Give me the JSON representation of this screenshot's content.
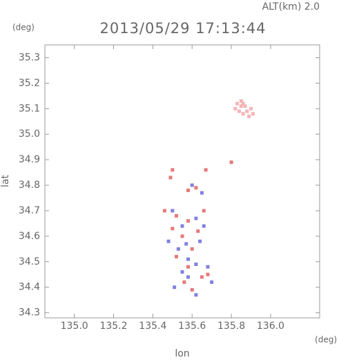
{
  "chart_data": {
    "type": "scatter",
    "header": "ALT(km) 2.0",
    "title": "2013/05/29 17:13:44",
    "y_unit": "(deg)",
    "x_unit": "(deg)",
    "xlabel": "lon",
    "ylabel": "lat",
    "xlim": [
      134.85,
      136.25
    ],
    "ylim": [
      34.28,
      35.35
    ],
    "xticks": [
      {
        "value": 135,
        "label": "135.0"
      },
      135.2,
      135.4,
      135.6,
      135.8,
      {
        "value": 136,
        "label": "136.0"
      }
    ],
    "yticks": [
      34.3,
      34.4,
      34.5,
      34.6,
      34.7,
      34.8,
      34.9,
      {
        "value": 35,
        "label": "35.0"
      },
      35.1,
      35.2,
      35.3
    ],
    "series": [
      {
        "color": "#f4b4b8",
        "x": [
          135.83,
          135.85,
          135.87,
          135.84,
          135.86,
          135.88,
          135.9,
          135.86,
          135.82,
          135.89,
          135.91,
          135.85
        ],
        "values": [
          35.12,
          35.13,
          35.11,
          35.09,
          35.08,
          35.09,
          35.1,
          35.12,
          35.1,
          35.07,
          35.08,
          35.11
        ]
      },
      {
        "color": "#e87878",
        "x": [
          135.5,
          135.49,
          135.67,
          135.8,
          135.58,
          135.62,
          135.46,
          135.52,
          135.58,
          135.63,
          135.55,
          135.6,
          135.52,
          135.58,
          135.65,
          135.56,
          135.6,
          135.68,
          135.5,
          135.66
        ],
        "values": [
          34.86,
          34.83,
          34.86,
          34.89,
          34.78,
          34.79,
          34.7,
          34.68,
          34.66,
          34.62,
          34.6,
          34.55,
          34.52,
          34.48,
          34.44,
          34.42,
          34.39,
          34.45,
          34.63,
          34.7
        ]
      },
      {
        "color": "#8080e0",
        "x": [
          135.6,
          135.65,
          135.5,
          135.55,
          135.62,
          135.48,
          135.57,
          135.64,
          135.53,
          135.58,
          135.62,
          135.68,
          135.55,
          135.7,
          135.58,
          135.51,
          135.62,
          135.66
        ],
        "values": [
          34.8,
          34.77,
          34.7,
          34.64,
          34.67,
          34.58,
          34.57,
          34.58,
          34.55,
          34.51,
          34.49,
          34.48,
          34.46,
          34.42,
          34.44,
          34.4,
          34.37,
          34.64
        ]
      }
    ]
  }
}
